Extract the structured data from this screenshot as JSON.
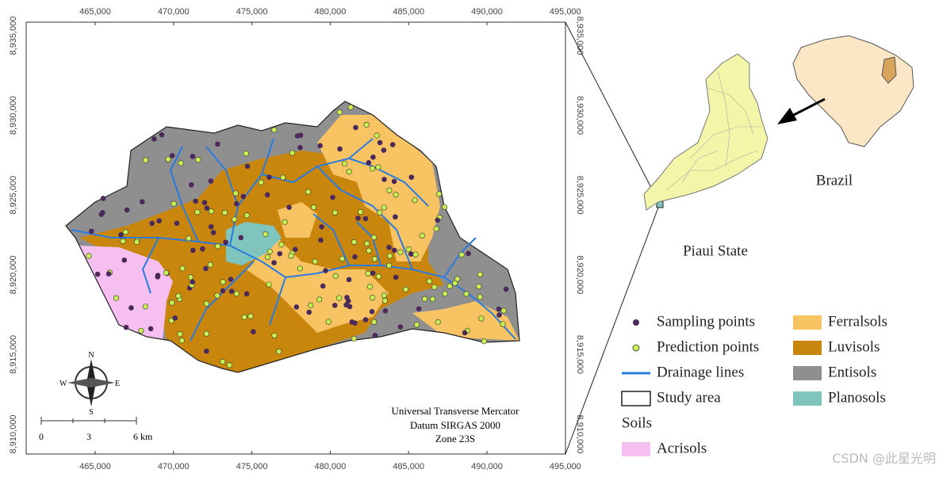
{
  "map": {
    "x_labels": [
      "465,000",
      "470,000",
      "475,000",
      "480,000",
      "485,000",
      "490,000",
      "495,000"
    ],
    "y_labels": [
      "8,935,000",
      "8,930,000",
      "8,925,000",
      "8,920,000",
      "8,915,000",
      "8,910,000"
    ],
    "compass": {
      "n": "N",
      "s": "S",
      "e": "E",
      "w": "W"
    },
    "scale": [
      "0",
      "3",
      "6 km"
    ],
    "projection": [
      "Universal Transverse Mercator",
      "Datum SIRGAS 2000",
      "Zone 23S"
    ]
  },
  "legend": {
    "sampling": "Sampling points",
    "prediction": "Prediction points",
    "drainage": "Drainage lines",
    "study": "Study area",
    "soils": "Soils",
    "acrisols": "Acrisols",
    "ferralsols": "Ferralsols",
    "luvisols": "Luvisols",
    "entisols": "Entisols",
    "planosols": "Planosols"
  },
  "inset": {
    "state": "Piaui State",
    "country": "Brazil"
  },
  "watermark": "CSDN @此星光明"
}
